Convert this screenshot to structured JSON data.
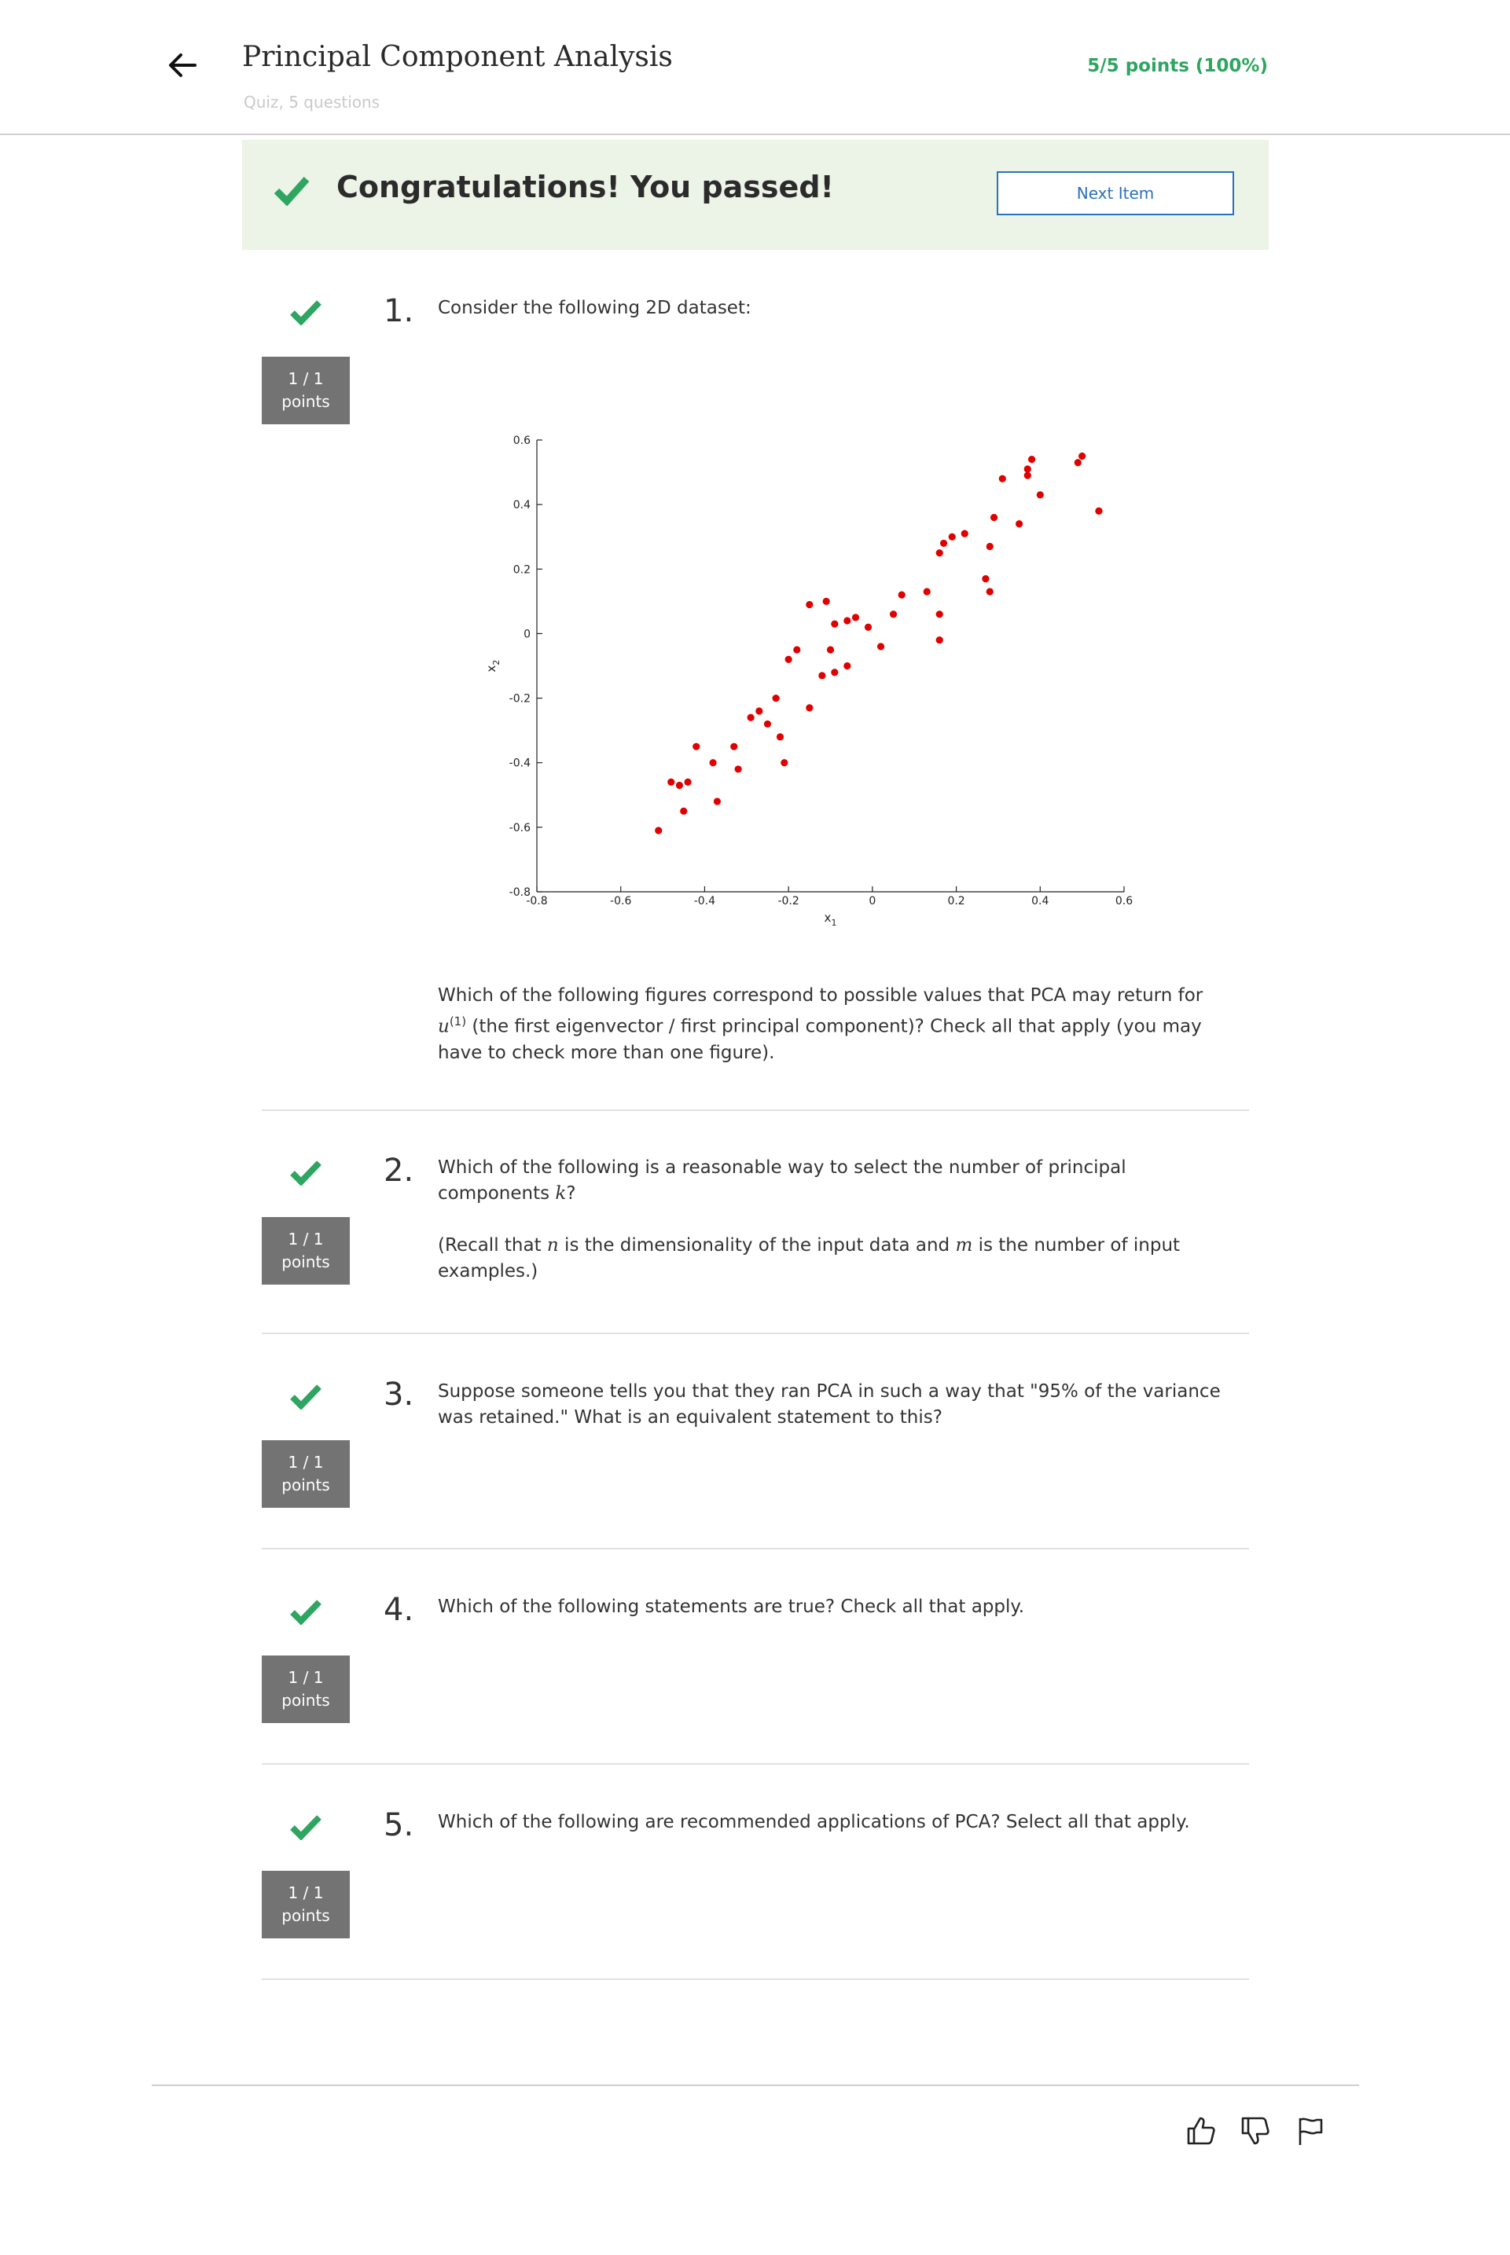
{
  "header": {
    "title": "Principal Component Analysis",
    "subtitle": "Quiz, 5 questions",
    "score": "5/5 points (100%)"
  },
  "banner": {
    "message": "Congratulations! You passed!",
    "next_label": "Next Item"
  },
  "questions": [
    {
      "number": "1.",
      "points_line1": "1 / 1",
      "points_line2": "points",
      "intro": "Consider the following 2D dataset:",
      "prompt_before": "Which of the following figures correspond to possible values that PCA may return for ",
      "prompt_var": "u",
      "prompt_sup": "(1)",
      "prompt_after": " (the first eigenvector / first principal component)? Check all that apply (you may have to check more than one figure)."
    },
    {
      "number": "2.",
      "points_line1": "1 / 1",
      "points_line2": "points",
      "line1": "Which of the following is a reasonable way to select the number of principal components ",
      "var_k": "k",
      "line1_end": "?",
      "line2_a": "(Recall that ",
      "var_n": "n",
      "line2_b": " is the dimensionality of the input data and ",
      "var_m": "m",
      "line2_c": " is the number of input examples.)"
    },
    {
      "number": "3.",
      "points_line1": "1 / 1",
      "points_line2": "points",
      "text": "Suppose someone tells you that they ran PCA in such a way that \"95% of the variance was retained.\" What is an equivalent statement to this?"
    },
    {
      "number": "4.",
      "points_line1": "1 / 1",
      "points_line2": "points",
      "text": "Which of the following statements are true? Check all that apply."
    },
    {
      "number": "5.",
      "points_line1": "1 / 1",
      "points_line2": "points",
      "text": "Which of the following are recommended applications of PCA? Select all that apply."
    }
  ],
  "colors": {
    "success": "#2ea560",
    "banner_bg": "#ecf3e7",
    "link": "#2b70b8",
    "points_badge": "#737373",
    "marker": "#e00000"
  },
  "icons": {
    "back": "back-arrow-icon",
    "check": "check-icon",
    "like": "thumbs-up-icon",
    "dislike": "thumbs-down-icon",
    "flag": "flag-icon"
  },
  "chart_data": {
    "type": "scatter",
    "title": "",
    "xlabel": "x1",
    "ylabel": "x2",
    "xlim": [
      -0.8,
      0.6
    ],
    "ylim": [
      -0.8,
      0.6
    ],
    "xticks": [
      -0.8,
      -0.6,
      -0.4,
      -0.2,
      0,
      0.2,
      0.4,
      0.6
    ],
    "yticks": [
      -0.8,
      -0.6,
      -0.4,
      -0.2,
      0,
      0.2,
      0.4,
      0.6
    ],
    "xtick_labels": [
      "-0.8",
      "-0.6",
      "-0.4",
      "-0.2",
      "0",
      "0.2",
      "0.4",
      "0.6"
    ],
    "ytick_labels": [
      "-0.8",
      "-0.6",
      "-0.4",
      "-0.2",
      "0",
      "0.2",
      "0.4",
      "0.6"
    ],
    "grid": false,
    "series": [
      {
        "name": "data",
        "marker_color": "#e00000",
        "x": [
          -0.51,
          -0.48,
          -0.46,
          -0.45,
          -0.44,
          -0.42,
          -0.38,
          -0.37,
          -0.33,
          -0.32,
          -0.29,
          -0.27,
          -0.25,
          -0.23,
          -0.22,
          -0.21,
          -0.2,
          -0.18,
          -0.15,
          -0.15,
          -0.12,
          -0.11,
          -0.1,
          -0.09,
          -0.09,
          -0.06,
          -0.06,
          -0.04,
          -0.01,
          0.02,
          0.05,
          0.07,
          0.13,
          0.16,
          0.16,
          0.16,
          0.17,
          0.19,
          0.22,
          0.27,
          0.28,
          0.28,
          0.29,
          0.31,
          0.35,
          0.37,
          0.37,
          0.38,
          0.4,
          0.49,
          0.5,
          0.54,
          0.54
        ],
        "y": [
          -0.61,
          -0.46,
          -0.47,
          -0.55,
          -0.46,
          -0.35,
          -0.4,
          -0.52,
          -0.35,
          -0.42,
          -0.26,
          -0.24,
          -0.28,
          -0.2,
          -0.32,
          -0.4,
          -0.08,
          -0.05,
          0.09,
          -0.23,
          -0.13,
          0.1,
          -0.05,
          0.03,
          -0.12,
          0.04,
          -0.1,
          0.05,
          0.02,
          -0.04,
          0.06,
          0.12,
          0.13,
          -0.02,
          0.06,
          0.25,
          0.28,
          0.3,
          0.31,
          0.17,
          0.13,
          0.27,
          0.36,
          0.48,
          0.34,
          0.49,
          0.51,
          0.54,
          0.43,
          0.53,
          0.55,
          0.38,
          0.38
        ]
      }
    ]
  }
}
